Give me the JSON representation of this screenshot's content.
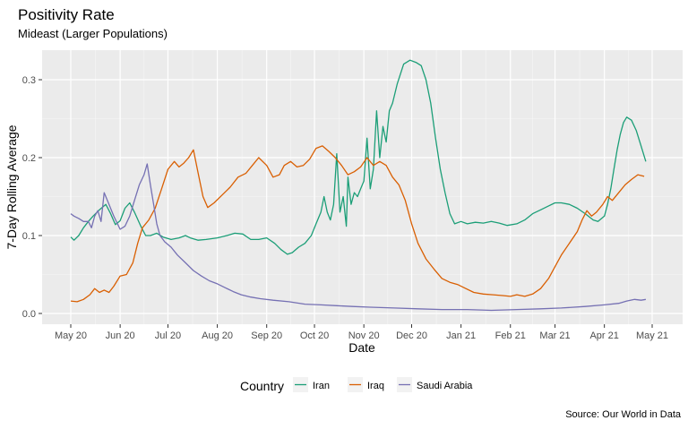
{
  "chart_data": {
    "type": "line",
    "title": "Positivity Rate",
    "subtitle": "Mideast (Larger Populations)",
    "xlabel": "Date",
    "ylabel": "7-Day Rolling Average",
    "caption": "Source:  Our World in Data",
    "legend_title": "Country",
    "legend_position": "bottom",
    "grid": true,
    "x_unit": "date",
    "xlim": [
      "2020-05-01",
      "2021-05-01"
    ],
    "ylim": [
      0,
      0.3
    ],
    "x_ticks": [
      {
        "date": "2020-05-01",
        "label": "May 20"
      },
      {
        "date": "2020-06-01",
        "label": "Jun 20"
      },
      {
        "date": "2020-07-01",
        "label": "Jul 20"
      },
      {
        "date": "2020-08-01",
        "label": "Aug 20"
      },
      {
        "date": "2020-09-01",
        "label": "Sep 20"
      },
      {
        "date": "2020-10-01",
        "label": "Oct 20"
      },
      {
        "date": "2020-11-01",
        "label": "Nov 20"
      },
      {
        "date": "2020-12-01",
        "label": "Dec 20"
      },
      {
        "date": "2021-01-01",
        "label": "Jan 21"
      },
      {
        "date": "2021-02-01",
        "label": "Feb 21"
      },
      {
        "date": "2021-03-01",
        "label": "Mar 21"
      },
      {
        "date": "2021-04-01",
        "label": "Apr 21"
      },
      {
        "date": "2021-05-01",
        "label": "May 21"
      }
    ],
    "y_ticks": [
      {
        "value": 0,
        "label": "0.0"
      },
      {
        "value": 0.1,
        "label": "0.1"
      },
      {
        "value": 0.2,
        "label": "0.2"
      },
      {
        "value": 0.3,
        "label": "0.3"
      }
    ],
    "series": [
      {
        "name": "Iran",
        "color": "#1b9e77",
        "points": [
          [
            "2020-05-01",
            0.098
          ],
          [
            "2020-05-03",
            0.094
          ],
          [
            "2020-05-06",
            0.1
          ],
          [
            "2020-05-09",
            0.11
          ],
          [
            "2020-05-12",
            0.118
          ],
          [
            "2020-05-15",
            0.125
          ],
          [
            "2020-05-19",
            0.133
          ],
          [
            "2020-05-23",
            0.14
          ],
          [
            "2020-05-26",
            0.128
          ],
          [
            "2020-05-29",
            0.114
          ],
          [
            "2020-06-01",
            0.119
          ],
          [
            "2020-06-04",
            0.135
          ],
          [
            "2020-06-07",
            0.142
          ],
          [
            "2020-06-10",
            0.13
          ],
          [
            "2020-06-14",
            0.112
          ],
          [
            "2020-06-17",
            0.1
          ],
          [
            "2020-06-20",
            0.1
          ],
          [
            "2020-06-24",
            0.103
          ],
          [
            "2020-06-28",
            0.098
          ],
          [
            "2020-07-03",
            0.095
          ],
          [
            "2020-07-08",
            0.097
          ],
          [
            "2020-07-12",
            0.1
          ],
          [
            "2020-07-15",
            0.097
          ],
          [
            "2020-07-20",
            0.094
          ],
          [
            "2020-07-25",
            0.095
          ],
          [
            "2020-08-01",
            0.097
          ],
          [
            "2020-08-07",
            0.1
          ],
          [
            "2020-08-12",
            0.103
          ],
          [
            "2020-08-17",
            0.102
          ],
          [
            "2020-08-22",
            0.095
          ],
          [
            "2020-08-27",
            0.095
          ],
          [
            "2020-09-01",
            0.097
          ],
          [
            "2020-09-06",
            0.09
          ],
          [
            "2020-09-10",
            0.082
          ],
          [
            "2020-09-14",
            0.076
          ],
          [
            "2020-09-17",
            0.078
          ],
          [
            "2020-09-21",
            0.085
          ],
          [
            "2020-09-25",
            0.09
          ],
          [
            "2020-09-29",
            0.1
          ],
          [
            "2020-10-02",
            0.115
          ],
          [
            "2020-10-05",
            0.13
          ],
          [
            "2020-10-07",
            0.15
          ],
          [
            "2020-10-09",
            0.13
          ],
          [
            "2020-10-11",
            0.12
          ],
          [
            "2020-10-13",
            0.14
          ],
          [
            "2020-10-15",
            0.205
          ],
          [
            "2020-10-17",
            0.13
          ],
          [
            "2020-10-19",
            0.15
          ],
          [
            "2020-10-21",
            0.112
          ],
          [
            "2020-10-22",
            0.175
          ],
          [
            "2020-10-24",
            0.14
          ],
          [
            "2020-10-26",
            0.155
          ],
          [
            "2020-10-28",
            0.15
          ],
          [
            "2020-10-30",
            0.16
          ],
          [
            "2020-11-01",
            0.17
          ],
          [
            "2020-11-03",
            0.225
          ],
          [
            "2020-11-05",
            0.16
          ],
          [
            "2020-11-07",
            0.185
          ],
          [
            "2020-11-09",
            0.26
          ],
          [
            "2020-11-11",
            0.2
          ],
          [
            "2020-11-13",
            0.24
          ],
          [
            "2020-11-15",
            0.22
          ],
          [
            "2020-11-17",
            0.26
          ],
          [
            "2020-11-19",
            0.27
          ],
          [
            "2020-11-22",
            0.295
          ],
          [
            "2020-11-26",
            0.32
          ],
          [
            "2020-11-30",
            0.325
          ],
          [
            "2020-12-04",
            0.322
          ],
          [
            "2020-12-07",
            0.318
          ],
          [
            "2020-12-10",
            0.3
          ],
          [
            "2020-12-13",
            0.27
          ],
          [
            "2020-12-16",
            0.225
          ],
          [
            "2020-12-19",
            0.185
          ],
          [
            "2020-12-22",
            0.155
          ],
          [
            "2020-12-25",
            0.128
          ],
          [
            "2020-12-28",
            0.115
          ],
          [
            "2021-01-01",
            0.118
          ],
          [
            "2021-01-05",
            0.115
          ],
          [
            "2021-01-10",
            0.117
          ],
          [
            "2021-01-15",
            0.116
          ],
          [
            "2021-01-20",
            0.118
          ],
          [
            "2021-01-25",
            0.116
          ],
          [
            "2021-01-30",
            0.113
          ],
          [
            "2021-02-05",
            0.115
          ],
          [
            "2021-02-10",
            0.12
          ],
          [
            "2021-02-15",
            0.128
          ],
          [
            "2021-02-20",
            0.133
          ],
          [
            "2021-02-25",
            0.138
          ],
          [
            "2021-03-01",
            0.142
          ],
          [
            "2021-03-05",
            0.142
          ],
          [
            "2021-03-10",
            0.14
          ],
          [
            "2021-03-15",
            0.135
          ],
          [
            "2021-03-20",
            0.128
          ],
          [
            "2021-03-25",
            0.12
          ],
          [
            "2021-03-28",
            0.118
          ],
          [
            "2021-04-01",
            0.125
          ],
          [
            "2021-04-03",
            0.14
          ],
          [
            "2021-04-05",
            0.16
          ],
          [
            "2021-04-07",
            0.185
          ],
          [
            "2021-04-09",
            0.21
          ],
          [
            "2021-04-11",
            0.23
          ],
          [
            "2021-04-13",
            0.245
          ],
          [
            "2021-04-15",
            0.252
          ],
          [
            "2021-04-18",
            0.248
          ],
          [
            "2021-04-21",
            0.235
          ],
          [
            "2021-04-24",
            0.215
          ],
          [
            "2021-04-27",
            0.195
          ]
        ]
      },
      {
        "name": "Iraq",
        "color": "#d95f02",
        "points": [
          [
            "2020-05-01",
            0.016
          ],
          [
            "2020-05-05",
            0.015
          ],
          [
            "2020-05-09",
            0.018
          ],
          [
            "2020-05-13",
            0.024
          ],
          [
            "2020-05-16",
            0.032
          ],
          [
            "2020-05-19",
            0.027
          ],
          [
            "2020-05-22",
            0.03
          ],
          [
            "2020-05-25",
            0.027
          ],
          [
            "2020-05-28",
            0.035
          ],
          [
            "2020-06-01",
            0.048
          ],
          [
            "2020-06-05",
            0.05
          ],
          [
            "2020-06-09",
            0.065
          ],
          [
            "2020-06-12",
            0.09
          ],
          [
            "2020-06-15",
            0.11
          ],
          [
            "2020-06-19",
            0.12
          ],
          [
            "2020-06-23",
            0.135
          ],
          [
            "2020-06-27",
            0.16
          ],
          [
            "2020-07-01",
            0.185
          ],
          [
            "2020-07-05",
            0.195
          ],
          [
            "2020-07-08",
            0.188
          ],
          [
            "2020-07-11",
            0.193
          ],
          [
            "2020-07-14",
            0.2
          ],
          [
            "2020-07-17",
            0.21
          ],
          [
            "2020-07-20",
            0.18
          ],
          [
            "2020-07-23",
            0.15
          ],
          [
            "2020-07-26",
            0.136
          ],
          [
            "2020-07-30",
            0.142
          ],
          [
            "2020-08-04",
            0.152
          ],
          [
            "2020-08-09",
            0.162
          ],
          [
            "2020-08-14",
            0.175
          ],
          [
            "2020-08-19",
            0.18
          ],
          [
            "2020-08-23",
            0.19
          ],
          [
            "2020-08-27",
            0.2
          ],
          [
            "2020-09-01",
            0.19
          ],
          [
            "2020-09-05",
            0.175
          ],
          [
            "2020-09-09",
            0.178
          ],
          [
            "2020-09-12",
            0.19
          ],
          [
            "2020-09-16",
            0.195
          ],
          [
            "2020-09-20",
            0.188
          ],
          [
            "2020-09-24",
            0.19
          ],
          [
            "2020-09-28",
            0.198
          ],
          [
            "2020-10-02",
            0.212
          ],
          [
            "2020-10-06",
            0.215
          ],
          [
            "2020-10-10",
            0.208
          ],
          [
            "2020-10-14",
            0.2
          ],
          [
            "2020-10-18",
            0.19
          ],
          [
            "2020-10-22",
            0.178
          ],
          [
            "2020-10-26",
            0.182
          ],
          [
            "2020-10-30",
            0.188
          ],
          [
            "2020-11-03",
            0.2
          ],
          [
            "2020-11-07",
            0.19
          ],
          [
            "2020-11-11",
            0.195
          ],
          [
            "2020-11-15",
            0.19
          ],
          [
            "2020-11-19",
            0.175
          ],
          [
            "2020-11-23",
            0.165
          ],
          [
            "2020-11-27",
            0.145
          ],
          [
            "2020-12-01",
            0.115
          ],
          [
            "2020-12-05",
            0.09
          ],
          [
            "2020-12-10",
            0.07
          ],
          [
            "2020-12-15",
            0.057
          ],
          [
            "2020-12-20",
            0.045
          ],
          [
            "2020-12-25",
            0.04
          ],
          [
            "2020-12-30",
            0.037
          ],
          [
            "2021-01-04",
            0.032
          ],
          [
            "2021-01-09",
            0.027
          ],
          [
            "2021-01-15",
            0.025
          ],
          [
            "2021-01-21",
            0.024
          ],
          [
            "2021-01-27",
            0.023
          ],
          [
            "2021-02-01",
            0.022
          ],
          [
            "2021-02-05",
            0.024
          ],
          [
            "2021-02-10",
            0.022
          ],
          [
            "2021-02-15",
            0.025
          ],
          [
            "2021-02-20",
            0.032
          ],
          [
            "2021-02-25",
            0.045
          ],
          [
            "2021-03-01",
            0.06
          ],
          [
            "2021-03-05",
            0.075
          ],
          [
            "2021-03-10",
            0.09
          ],
          [
            "2021-03-15",
            0.105
          ],
          [
            "2021-03-18",
            0.12
          ],
          [
            "2021-03-21",
            0.132
          ],
          [
            "2021-03-24",
            0.125
          ],
          [
            "2021-03-27",
            0.13
          ],
          [
            "2021-03-31",
            0.14
          ],
          [
            "2021-04-03",
            0.15
          ],
          [
            "2021-04-06",
            0.145
          ],
          [
            "2021-04-10",
            0.155
          ],
          [
            "2021-04-14",
            0.165
          ],
          [
            "2021-04-18",
            0.172
          ],
          [
            "2021-04-22",
            0.178
          ],
          [
            "2021-04-26",
            0.176
          ]
        ]
      },
      {
        "name": "Saudi Arabia",
        "color": "#7570b3",
        "points": [
          [
            "2020-05-01",
            0.128
          ],
          [
            "2020-05-03",
            0.125
          ],
          [
            "2020-05-06",
            0.122
          ],
          [
            "2020-05-09",
            0.118
          ],
          [
            "2020-05-12",
            0.118
          ],
          [
            "2020-05-14",
            0.11
          ],
          [
            "2020-05-16",
            0.125
          ],
          [
            "2020-05-18",
            0.132
          ],
          [
            "2020-05-20",
            0.118
          ],
          [
            "2020-05-22",
            0.155
          ],
          [
            "2020-05-25",
            0.14
          ],
          [
            "2020-05-28",
            0.125
          ],
          [
            "2020-06-01",
            0.108
          ],
          [
            "2020-06-04",
            0.112
          ],
          [
            "2020-06-07",
            0.125
          ],
          [
            "2020-06-10",
            0.145
          ],
          [
            "2020-06-13",
            0.165
          ],
          [
            "2020-06-16",
            0.178
          ],
          [
            "2020-06-18",
            0.192
          ],
          [
            "2020-06-20",
            0.165
          ],
          [
            "2020-06-22",
            0.14
          ],
          [
            "2020-06-24",
            0.115
          ],
          [
            "2020-06-26",
            0.1
          ],
          [
            "2020-06-29",
            0.092
          ],
          [
            "2020-07-03",
            0.085
          ],
          [
            "2020-07-07",
            0.075
          ],
          [
            "2020-07-12",
            0.065
          ],
          [
            "2020-07-17",
            0.055
          ],
          [
            "2020-07-22",
            0.048
          ],
          [
            "2020-07-27",
            0.042
          ],
          [
            "2020-08-01",
            0.038
          ],
          [
            "2020-08-06",
            0.033
          ],
          [
            "2020-08-11",
            0.028
          ],
          [
            "2020-08-16",
            0.024
          ],
          [
            "2020-08-22",
            0.021
          ],
          [
            "2020-08-28",
            0.019
          ],
          [
            "2020-09-05",
            0.017
          ],
          [
            "2020-09-15",
            0.015
          ],
          [
            "2020-09-25",
            0.012
          ],
          [
            "2020-10-05",
            0.011
          ],
          [
            "2020-10-15",
            0.01
          ],
          [
            "2020-10-25",
            0.009
          ],
          [
            "2020-11-05",
            0.008
          ],
          [
            "2020-11-20",
            0.007
          ],
          [
            "2020-12-05",
            0.006
          ],
          [
            "2020-12-20",
            0.005
          ],
          [
            "2021-01-05",
            0.005
          ],
          [
            "2021-01-20",
            0.004
          ],
          [
            "2021-02-05",
            0.005
          ],
          [
            "2021-02-20",
            0.006
          ],
          [
            "2021-03-05",
            0.007
          ],
          [
            "2021-03-20",
            0.009
          ],
          [
            "2021-04-01",
            0.011
          ],
          [
            "2021-04-10",
            0.013
          ],
          [
            "2021-04-15",
            0.016
          ],
          [
            "2021-04-20",
            0.018
          ],
          [
            "2021-04-24",
            0.017
          ],
          [
            "2021-04-27",
            0.018
          ]
        ]
      }
    ]
  }
}
